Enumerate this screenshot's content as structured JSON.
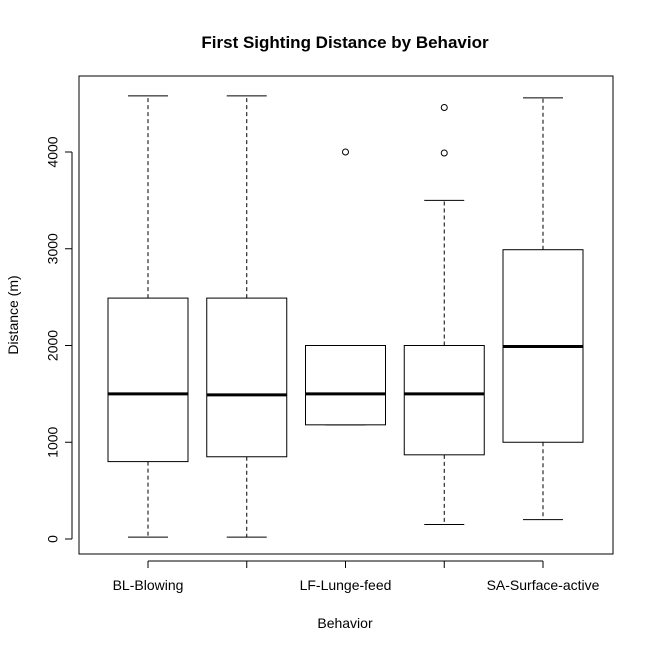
{
  "chart_data": {
    "type": "boxplot",
    "title": "First Sighting Distance by Behavior",
    "xlabel": "Behavior",
    "ylabel": "Distance (m)",
    "ylim": [
      -150,
      4750
    ],
    "y_ticks": [
      0,
      1000,
      2000,
      3000,
      4000
    ],
    "y_tick_labels": [
      "0",
      "1000",
      "2000",
      "3000",
      "4000"
    ],
    "categories": [
      "BL-Blowing",
      "",
      "LF-Lunge-feed",
      "",
      "SA-Surface-active"
    ],
    "boxes": [
      {
        "min": 20,
        "q1": 800,
        "median": 1500,
        "q3": 2490,
        "max": 4580,
        "outliers": []
      },
      {
        "min": 20,
        "q1": 850,
        "median": 1490,
        "q3": 2490,
        "max": 4580,
        "outliers": []
      },
      {
        "min": 1180,
        "q1": 1180,
        "median": 1500,
        "q3": 2000,
        "max": 2000,
        "outliers": [
          4000
        ]
      },
      {
        "min": 150,
        "q1": 870,
        "median": 1500,
        "q3": 2000,
        "max": 3500,
        "outliers": [
          3990,
          4460
        ]
      },
      {
        "min": 200,
        "q1": 1000,
        "median": 1990,
        "q3": 2990,
        "max": 4560,
        "outliers": []
      }
    ],
    "grid": false,
    "legend": "none"
  }
}
